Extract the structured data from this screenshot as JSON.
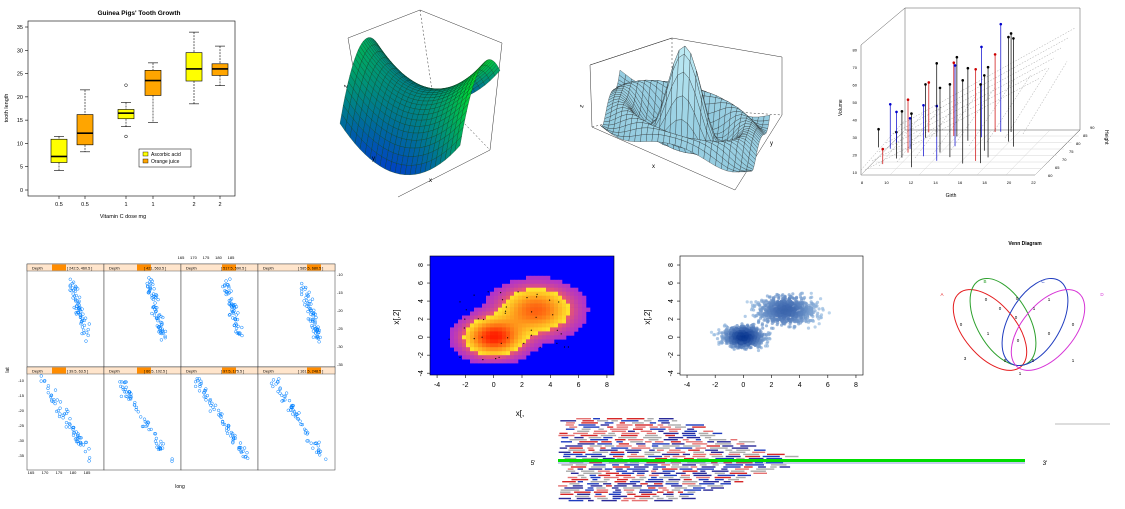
{
  "colors": {
    "ascorbic": "#ffff00",
    "orange": "#ffa500",
    "lattice_point": "#0080ff",
    "strip": "#ffe5cc",
    "strip_marker": "#ff8c00",
    "scatter3d_point": "#000000",
    "venn_a": "#e41a1c",
    "venn_b": "#2ca02c",
    "venn_c": "#1f3cbf",
    "venn_d": "#d633d6",
    "reads_green": "#00dd00"
  },
  "chart_data": [
    {
      "id": "tooth-growth",
      "type": "box",
      "title": "Guinea Pigs' Tooth Growth",
      "xlabel": "Vitamin C dose mg",
      "ylabel": "tooth length",
      "ylim": [
        0,
        35
      ],
      "yticks": [
        "0",
        "5",
        "10",
        "15",
        "20",
        "25",
        "30",
        "35"
      ],
      "categories": [
        "0.5",
        "0.5",
        "1",
        "1",
        "2",
        "2"
      ],
      "boxes": [
        {
          "group": "Ascorbic acid",
          "min": 4.2,
          "q1": 5.9,
          "median": 7.2,
          "q3": 10.9,
          "max": 11.5,
          "outliers": []
        },
        {
          "group": "Orange juice",
          "min": 8.2,
          "q1": 9.7,
          "median": 12.2,
          "q3": 16.2,
          "max": 21.5,
          "outliers": []
        },
        {
          "group": "Ascorbic acid",
          "min": 13.6,
          "q1": 15.3,
          "median": 16.5,
          "q3": 17.3,
          "max": 18.8,
          "outliers": [
            22.5,
            11.5
          ]
        },
        {
          "group": "Orange juice",
          "min": 14.5,
          "q1": 20.3,
          "median": 23.5,
          "q3": 25.7,
          "max": 27.3,
          "outliers": []
        },
        {
          "group": "Ascorbic acid",
          "min": 18.5,
          "q1": 23.4,
          "median": 26.0,
          "q3": 29.5,
          "max": 33.9,
          "outliers": []
        },
        {
          "group": "Orange juice",
          "min": 22.4,
          "q1": 24.6,
          "median": 26.0,
          "q3": 27.1,
          "max": 30.9,
          "outliers": []
        }
      ],
      "legend": [
        "Ascorbic acid",
        "Orange juice"
      ],
      "legend_position": "bottom-right"
    },
    {
      "id": "saddle-surface",
      "type": "surface3d",
      "axis_labels": [
        "x",
        "y",
        "z"
      ],
      "coloring": "height gradient blue to green"
    },
    {
      "id": "sinc-surface",
      "type": "surface3d",
      "axis_labels": [
        "x",
        "y",
        "z"
      ],
      "coloring": "light blue"
    },
    {
      "id": "trees-scatter3d",
      "type": "scatter3d",
      "xlabel": "Girth",
      "ylabel": "Height",
      "zlabel": "Volume",
      "xticks": [
        "8",
        "10",
        "12",
        "14",
        "16",
        "18",
        "20",
        "22"
      ],
      "yticks": [
        "60",
        "65",
        "70",
        "75",
        "80",
        "85",
        "90"
      ],
      "zticks": [
        "10",
        "20",
        "30",
        "40",
        "50",
        "60",
        "70",
        "80"
      ],
      "regression_plane": true
    },
    {
      "id": "quakes-lattice",
      "type": "scatter",
      "layout": "4x2 panels",
      "xlabel": "long",
      "ylabel": "lat",
      "strip_label": "Depth",
      "top_xticks": [
        "165",
        "170",
        "175",
        "180",
        "185"
      ],
      "bottom_xticks": [
        "165",
        "170",
        "175",
        "180",
        "185"
      ],
      "right_yticks": [
        "-10",
        "-15",
        "-20",
        "-25",
        "-30",
        "-35"
      ],
      "left_yticks": [
        "-10",
        "-15",
        "-20",
        "-25",
        "-30",
        "-35"
      ],
      "panel_strips": [
        "[ 39.5, 63.5 ]",
        "[ 60.5, 102.5 ]",
        "[ 97.5, 175.5 ]",
        "[ 161.5, 248.5 ]",
        "[ 242.5, 460.5 ]",
        "[ 421, 563.5 ]",
        "[ 517.5, 590.5 ]",
        "[ 585.5, 680.5 ]"
      ]
    },
    {
      "id": "density-heatmap",
      "type": "heatmap",
      "xlabel": "x[,",
      "ylabel": "x[,2]",
      "xticks": [
        "-4",
        "-2",
        "0",
        "2",
        "4",
        "6",
        "8"
      ],
      "yticks": [
        "-4",
        "-2",
        "0",
        "2",
        "4",
        "6",
        "8"
      ],
      "xlim": [
        -4.5,
        8.5
      ],
      "ylim": [
        -4.2,
        9
      ],
      "peaks": [
        {
          "x": 0,
          "y": 0
        },
        {
          "x": 3,
          "y": 3
        }
      ]
    },
    {
      "id": "smooth-scatter",
      "type": "scatter",
      "ylabel": "x[,2]",
      "xticks": [
        "-4",
        "-2",
        "0",
        "2",
        "4",
        "6",
        "8"
      ],
      "yticks": [
        "-4",
        "-2",
        "0",
        "2",
        "4",
        "6",
        "8"
      ],
      "xlim": [
        -4.5,
        8.5
      ],
      "ylim": [
        -4.2,
        9
      ],
      "peaks": [
        {
          "x": 0,
          "y": 0
        },
        {
          "x": 3,
          "y": 3
        }
      ]
    },
    {
      "id": "venn",
      "type": "venn",
      "title": "Venn Diagram",
      "sets": [
        "A",
        "B",
        "C",
        "D"
      ],
      "region_labels": [
        "0",
        "0",
        "0",
        "1",
        "0",
        "0",
        "1",
        "1",
        "0",
        "0",
        "0",
        "0",
        "3",
        "0",
        "1",
        "1"
      ]
    },
    {
      "id": "read-alignment",
      "type": "alignment",
      "left_label": "5'",
      "right_label": "3'"
    }
  ]
}
